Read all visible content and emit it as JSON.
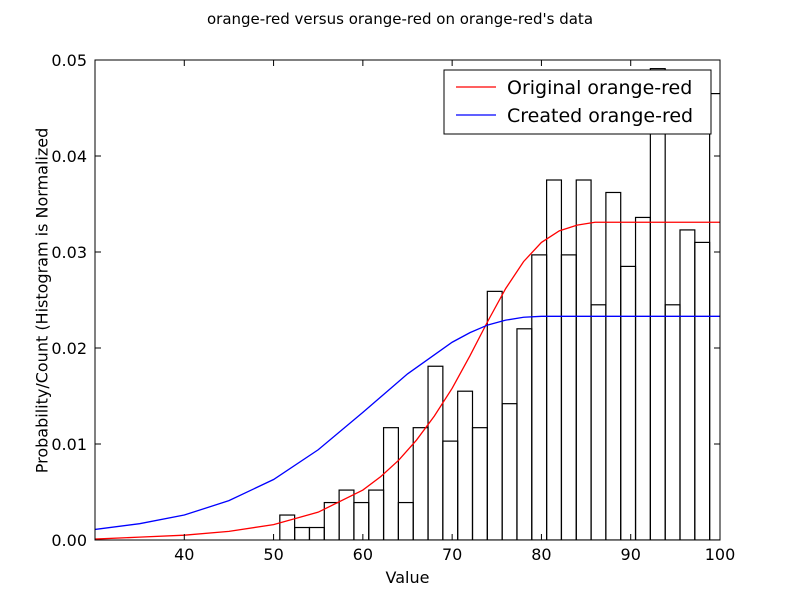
{
  "chart_data": {
    "type": "histogram",
    "title": "orange-red versus orange-red on orange-red's data",
    "xlabel": "Value",
    "ylabel": "Probability/Count (Histogram is Normalized",
    "xlim": [
      30,
      100
    ],
    "ylim": [
      0,
      0.05
    ],
    "x_ticks": [
      40,
      50,
      60,
      70,
      80,
      90,
      100
    ],
    "x_tick_labels": [
      "40",
      "50",
      "60",
      "70",
      "80",
      "90",
      "100"
    ],
    "y_ticks": [
      0,
      0.01,
      0.02,
      0.03,
      0.04,
      0.05
    ],
    "y_tick_labels": [
      "0.00",
      "0.01",
      "0.02",
      "0.03",
      "0.04",
      "0.05"
    ],
    "grid": false,
    "legend_position": "top-right",
    "histogram": {
      "bin_start": 50.7,
      "bin_width": 1.66,
      "values": [
        0.0026,
        0.0013,
        0.0013,
        0.0039,
        0.0052,
        0.0039,
        0.0052,
        0.0117,
        0.0039,
        0.0117,
        0.0181,
        0.0103,
        0.0155,
        0.0117,
        0.0259,
        0.0142,
        0.022,
        0.0297,
        0.0375,
        0.0297,
        0.0375,
        0.0245,
        0.0362,
        0.0285,
        0.0336,
        0.0491,
        0.0245,
        0.0323,
        0.031,
        0.0465
      ]
    },
    "series": [
      {
        "name": "Original orange-red",
        "color": "#ff0000",
        "x": [
          30,
          35,
          40,
          45,
          50,
          55,
          60,
          62,
          64,
          66,
          68,
          70,
          72,
          74,
          76,
          78,
          80,
          82,
          84,
          86,
          88,
          90,
          95,
          100
        ],
        "y": [
          0.0001,
          0.0003,
          0.0005,
          0.0009,
          0.0016,
          0.0029,
          0.0052,
          0.0066,
          0.0083,
          0.0104,
          0.0129,
          0.0158,
          0.0192,
          0.0228,
          0.0262,
          0.029,
          0.031,
          0.0322,
          0.0328,
          0.0331,
          0.0331,
          0.0331,
          0.0331,
          0.0331
        ]
      },
      {
        "name": "Created orange-red",
        "color": "#0000ff",
        "x": [
          30,
          35,
          40,
          45,
          50,
          55,
          60,
          65,
          70,
          72,
          74,
          76,
          78,
          80,
          82,
          85,
          90,
          95,
          100
        ],
        "y": [
          0.0011,
          0.0017,
          0.0026,
          0.0041,
          0.0063,
          0.0094,
          0.0133,
          0.0173,
          0.0206,
          0.0216,
          0.0224,
          0.0229,
          0.0232,
          0.0233,
          0.0233,
          0.0233,
          0.0233,
          0.0233,
          0.0233
        ]
      }
    ]
  }
}
